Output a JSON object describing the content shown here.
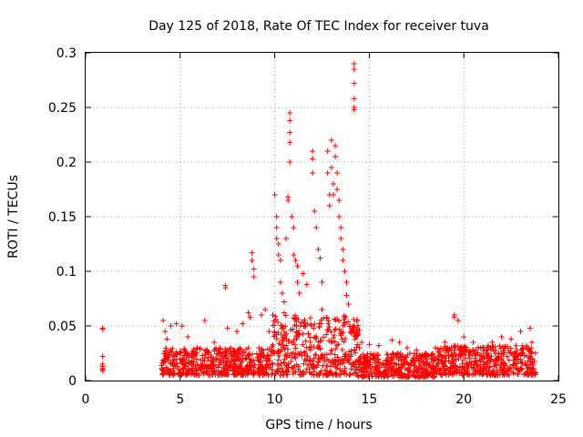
{
  "chart_data": {
    "type": "scatter",
    "title": "Day 125 of 2018, Rate Of TEC Index for receiver tuva",
    "xlabel": "GPS time / hours",
    "ylabel": "ROTI / TECUs",
    "xlim": [
      0,
      25
    ],
    "ylim": [
      0,
      0.3
    ],
    "xticks": [
      "0",
      "5",
      "10",
      "15",
      "20",
      "25"
    ],
    "yticks": [
      "0",
      "0.05",
      "0.1",
      "0.15",
      "0.2",
      "0.25",
      "0.3"
    ],
    "grid": true,
    "marker": "plus",
    "color": "#ff0000",
    "series": [
      {
        "points": [
          [
            0.9,
            0.048
          ],
          [
            0.9,
            0.047
          ],
          [
            0.9,
            0.022
          ],
          [
            0.9,
            0.015
          ],
          [
            0.9,
            0.013
          ],
          [
            0.9,
            0.011
          ],
          [
            0.9,
            0.01
          ],
          [
            0.9,
            0.009
          ],
          [
            4.1,
            0.055
          ],
          [
            4.2,
            0.045
          ],
          [
            4.3,
            0.038
          ],
          [
            4.5,
            0.05
          ],
          [
            4.8,
            0.052
          ],
          [
            5.1,
            0.05
          ],
          [
            5.4,
            0.04
          ],
          [
            6.3,
            0.055
          ],
          [
            5.9,
            0.03
          ],
          [
            6.8,
            0.035
          ],
          [
            7.1,
            0.03
          ],
          [
            7.4,
            0.085
          ],
          [
            7.4,
            0.087
          ],
          [
            7.5,
            0.048
          ],
          [
            8.0,
            0.045
          ],
          [
            8.3,
            0.052
          ],
          [
            8.6,
            0.062
          ],
          [
            8.7,
            0.058
          ],
          [
            8.8,
            0.117
          ],
          [
            8.8,
            0.11
          ],
          [
            8.9,
            0.102
          ],
          [
            8.9,
            0.095
          ],
          [
            9.3,
            0.06
          ],
          [
            9.5,
            0.065
          ],
          [
            9.7,
            0.045
          ],
          [
            9.9,
            0.06
          ],
          [
            10.0,
            0.17
          ],
          [
            10.1,
            0.15
          ],
          [
            10.1,
            0.14
          ],
          [
            10.1,
            0.13
          ],
          [
            10.2,
            0.125
          ],
          [
            10.2,
            0.115
          ],
          [
            10.3,
            0.11
          ],
          [
            10.3,
            0.09
          ],
          [
            10.4,
            0.08
          ],
          [
            10.5,
            0.072
          ],
          [
            10.5,
            0.062
          ],
          [
            10.6,
            0.13
          ],
          [
            10.7,
            0.168
          ],
          [
            10.7,
            0.165
          ],
          [
            10.8,
            0.245
          ],
          [
            10.8,
            0.238
          ],
          [
            10.8,
            0.227
          ],
          [
            10.8,
            0.218
          ],
          [
            10.8,
            0.2
          ],
          [
            10.9,
            0.15
          ],
          [
            11.0,
            0.14
          ],
          [
            11.0,
            0.115
          ],
          [
            11.1,
            0.11
          ],
          [
            11.2,
            0.105
          ],
          [
            11.2,
            0.09
          ],
          [
            11.3,
            0.08
          ],
          [
            11.5,
            0.098
          ],
          [
            11.7,
            0.088
          ],
          [
            12.0,
            0.21
          ],
          [
            12.0,
            0.203
          ],
          [
            12.0,
            0.19
          ],
          [
            12.1,
            0.155
          ],
          [
            12.2,
            0.14
          ],
          [
            12.3,
            0.12
          ],
          [
            12.4,
            0.112
          ],
          [
            12.5,
            0.09
          ],
          [
            12.5,
            0.065
          ],
          [
            12.8,
            0.21
          ],
          [
            12.8,
            0.19
          ],
          [
            12.9,
            0.17
          ],
          [
            12.9,
            0.16
          ],
          [
            13.0,
            0.22
          ],
          [
            13.0,
            0.195
          ],
          [
            13.1,
            0.18
          ],
          [
            13.1,
            0.17
          ],
          [
            13.2,
            0.215
          ],
          [
            13.2,
            0.205
          ],
          [
            13.3,
            0.19
          ],
          [
            13.3,
            0.175
          ],
          [
            13.4,
            0.165
          ],
          [
            13.4,
            0.15
          ],
          [
            13.5,
            0.14
          ],
          [
            13.5,
            0.13
          ],
          [
            13.6,
            0.12
          ],
          [
            13.6,
            0.11
          ],
          [
            13.7,
            0.1
          ],
          [
            13.8,
            0.09
          ],
          [
            13.8,
            0.078
          ],
          [
            13.9,
            0.07
          ],
          [
            14.2,
            0.29
          ],
          [
            14.2,
            0.285
          ],
          [
            14.2,
            0.272
          ],
          [
            14.2,
            0.258
          ],
          [
            14.2,
            0.25
          ],
          [
            14.2,
            0.248
          ],
          [
            14.3,
            0.04
          ],
          [
            14.6,
            0.035
          ],
          [
            15.0,
            0.033
          ],
          [
            15.5,
            0.032
          ],
          [
            16.2,
            0.037
          ],
          [
            16.6,
            0.035
          ],
          [
            17.0,
            0.03
          ],
          [
            17.5,
            0.028
          ],
          [
            18.0,
            0.025
          ],
          [
            18.5,
            0.03
          ],
          [
            19.0,
            0.035
          ],
          [
            19.5,
            0.06
          ],
          [
            19.5,
            0.058
          ],
          [
            19.7,
            0.055
          ],
          [
            20.0,
            0.04
          ],
          [
            20.5,
            0.035
          ],
          [
            21.0,
            0.03
          ],
          [
            21.5,
            0.035
          ],
          [
            22.0,
            0.04
          ],
          [
            22.5,
            0.038
          ],
          [
            23.0,
            0.045
          ],
          [
            23.5,
            0.048
          ],
          [
            23.6,
            0.035
          ]
        ],
        "clusters": [
          {
            "x": [
              4.0,
              9.8
            ],
            "y": [
              0.005,
              0.03
            ]
          },
          {
            "x": [
              9.8,
              14.5
            ],
            "y": [
              0.005,
              0.06
            ]
          },
          {
            "x": [
              14.4,
              18.5
            ],
            "y": [
              0.003,
              0.025
            ]
          },
          {
            "x": [
              18.5,
              23.8
            ],
            "y": [
              0.005,
              0.032
            ]
          }
        ]
      }
    ]
  }
}
